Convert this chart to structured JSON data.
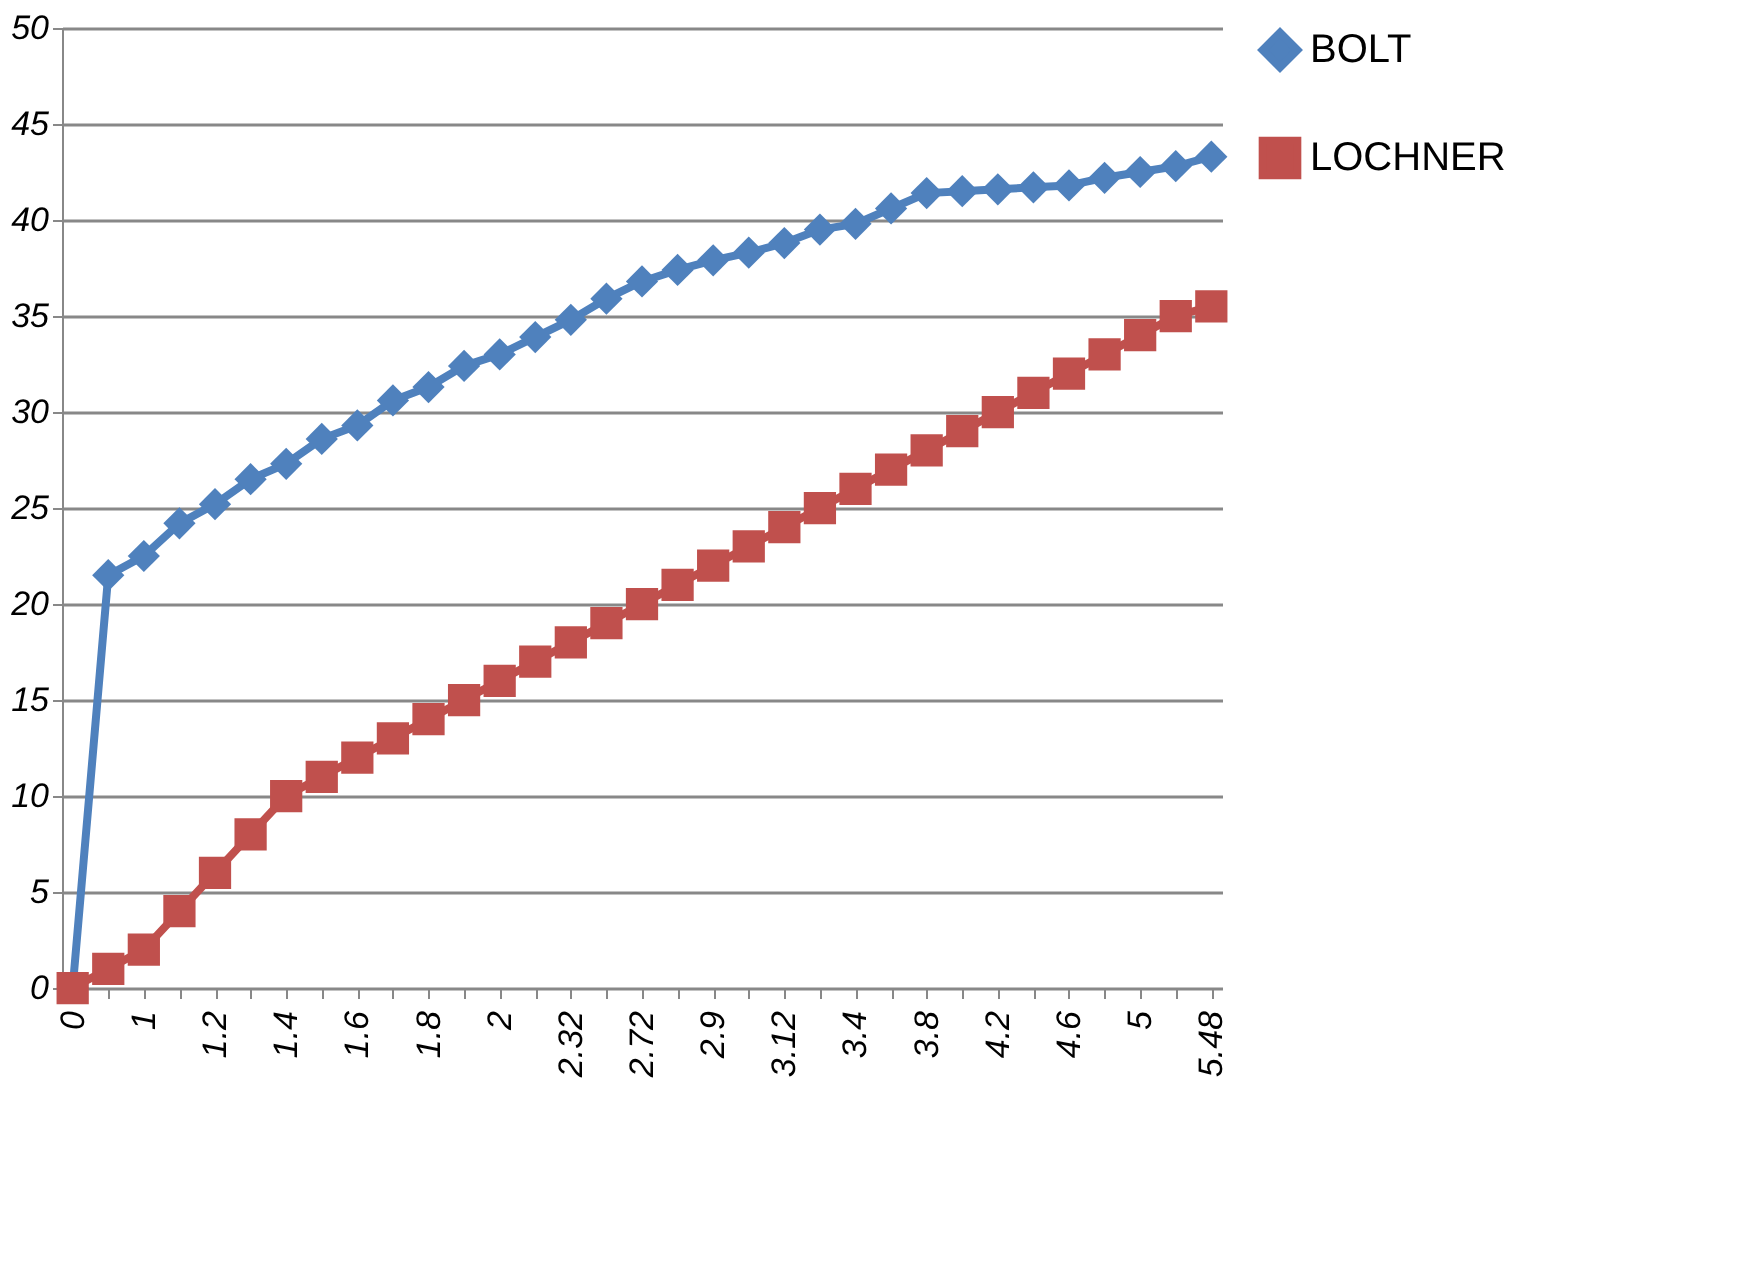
{
  "chart_data": {
    "type": "line",
    "categories": [
      "0",
      null,
      "1",
      null,
      "1.2",
      null,
      "1.4",
      null,
      "1.6",
      null,
      "1.8",
      null,
      "2",
      null,
      "2.32",
      null,
      "2.72",
      null,
      "2.9",
      null,
      "3.12",
      null,
      "3.4",
      null,
      "3.8",
      null,
      "4.2",
      null,
      "4.6",
      null,
      "5",
      null,
      "5.48"
    ],
    "series": [
      {
        "name": "BOLT",
        "color": "#4f81bd",
        "marker": "diamond",
        "values": [
          0,
          21.5,
          22.5,
          24.2,
          25.2,
          26.5,
          27.3,
          28.6,
          29.3,
          30.6,
          31.3,
          32.4,
          33,
          33.9,
          34.8,
          35.9,
          36.8,
          37.4,
          37.9,
          38.3,
          38.8,
          39.5,
          39.8,
          40.6,
          41.4,
          41.5,
          41.6,
          41.7,
          41.8,
          42.2,
          42.5,
          42.8,
          43.3
        ]
      },
      {
        "name": "LOCHNER",
        "color": "#c0504d",
        "marker": "square",
        "values": [
          0,
          1,
          2,
          4,
          6,
          8,
          10,
          11,
          12,
          13,
          14,
          15,
          16,
          17,
          18,
          19,
          20,
          21,
          22,
          23,
          24,
          25,
          26,
          27,
          28,
          29,
          30,
          31,
          32,
          33,
          34,
          35,
          35.5
        ]
      }
    ],
    "ylim": [
      0,
      50
    ],
    "yticks": [
      0,
      5,
      10,
      15,
      20,
      25,
      30,
      35,
      40,
      45,
      50
    ],
    "grid": "y",
    "legend": "right"
  }
}
